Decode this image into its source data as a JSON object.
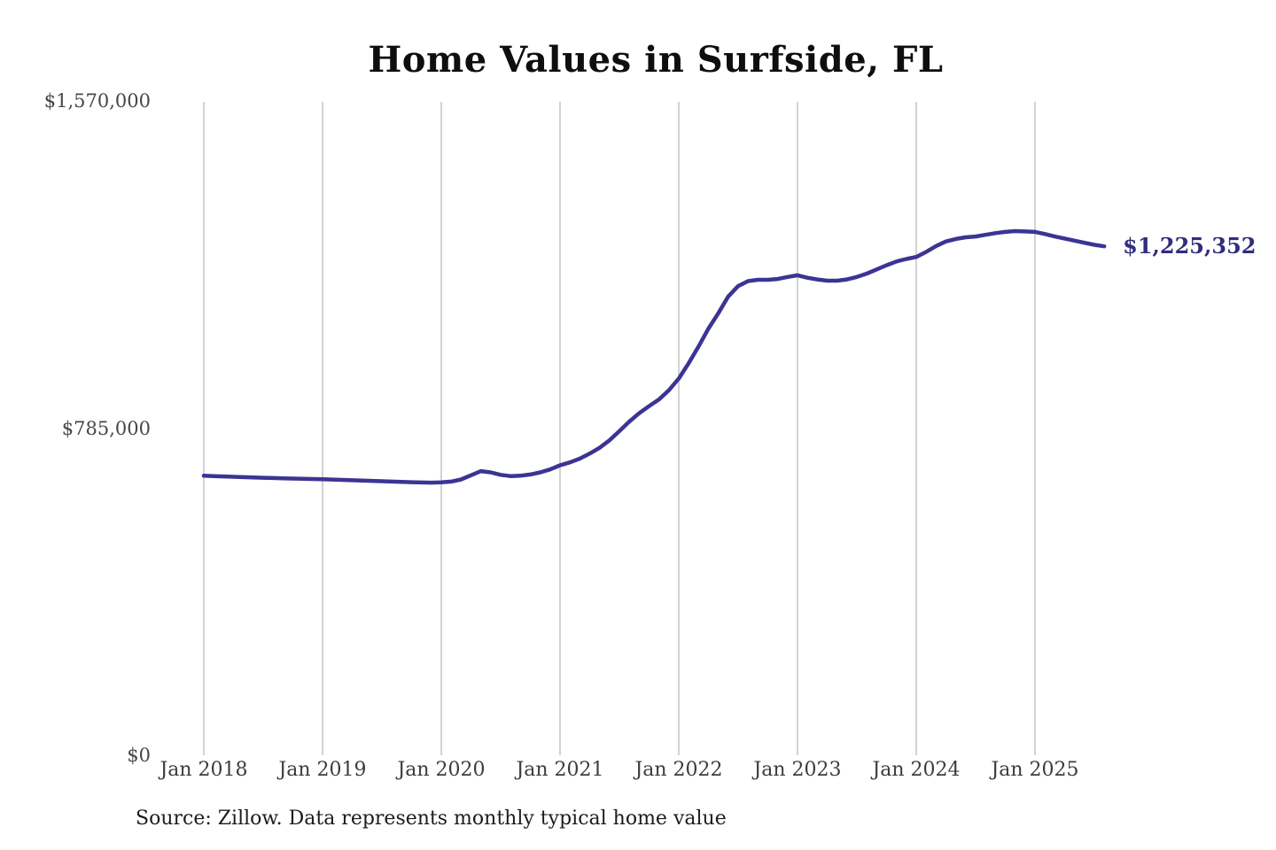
{
  "chart": {
    "title": "Home Values in Surfside, FL",
    "end_label": "$1,225,352",
    "source": "Source: Zillow. Data represents monthly typical home value",
    "colors": {
      "line": "#3c3494",
      "end_label": "#322d7d",
      "grid": "#c6c6c6",
      "title": "#0e0e0e",
      "tick_text": "#424242",
      "source_text": "#1c1c1c",
      "background": "#ffffff"
    }
  },
  "chart_data": {
    "type": "line",
    "title": "Home Values in Surfside, FL",
    "ylim": [
      0,
      1570000
    ],
    "grid": "vertical-only",
    "legend_position": "none",
    "annotation": "$1,225,352",
    "y_ticks": [
      {
        "label": "$1,570,000",
        "value": 1570000
      },
      {
        "label": "$785,000",
        "value": 785000
      },
      {
        "label": "$0",
        "value": 0
      }
    ],
    "x_ticks": [
      {
        "label": "Jan 2018",
        "index": 0
      },
      {
        "label": "Jan 2019",
        "index": 12
      },
      {
        "label": "Jan 2020",
        "index": 24
      },
      {
        "label": "Jan 2021",
        "index": 36
      },
      {
        "label": "Jan 2022",
        "index": 48
      },
      {
        "label": "Jan 2023",
        "index": 60
      },
      {
        "label": "Jan 2024",
        "index": 72
      },
      {
        "label": "Jan 2025",
        "index": 84
      }
    ],
    "x": [
      "2018-01",
      "2018-02",
      "2018-03",
      "2018-04",
      "2018-05",
      "2018-06",
      "2018-07",
      "2018-08",
      "2018-09",
      "2018-10",
      "2018-11",
      "2018-12",
      "2019-01",
      "2019-02",
      "2019-03",
      "2019-04",
      "2019-05",
      "2019-06",
      "2019-07",
      "2019-08",
      "2019-09",
      "2019-10",
      "2019-11",
      "2019-12",
      "2020-01",
      "2020-02",
      "2020-03",
      "2020-04",
      "2020-05",
      "2020-06",
      "2020-07",
      "2020-08",
      "2020-09",
      "2020-10",
      "2020-11",
      "2020-12",
      "2021-01",
      "2021-02",
      "2021-03",
      "2021-04",
      "2021-05",
      "2021-06",
      "2021-07",
      "2021-08",
      "2021-09",
      "2021-10",
      "2021-11",
      "2021-12",
      "2022-01",
      "2022-02",
      "2022-03",
      "2022-04",
      "2022-05",
      "2022-06",
      "2022-07",
      "2022-08",
      "2022-09",
      "2022-10",
      "2022-11",
      "2022-12",
      "2023-01",
      "2023-02",
      "2023-03",
      "2023-04",
      "2023-05",
      "2023-06",
      "2023-07",
      "2023-08",
      "2023-09",
      "2023-10",
      "2023-11",
      "2023-12",
      "2024-01",
      "2024-02",
      "2024-03",
      "2024-04",
      "2024-05",
      "2024-06",
      "2024-07",
      "2024-08",
      "2024-09",
      "2024-10",
      "2024-11",
      "2024-12",
      "2025-01",
      "2025-02",
      "2025-03",
      "2025-04",
      "2025-05",
      "2025-06",
      "2025-07",
      "2025-08"
    ],
    "values": [
      675000,
      674000,
      673200,
      672400,
      671600,
      670800,
      670000,
      669400,
      668800,
      668200,
      667600,
      667000,
      666400,
      665800,
      665000,
      664200,
      663400,
      662600,
      661800,
      661000,
      660200,
      659400,
      658800,
      658400,
      659000,
      661000,
      666000,
      676000,
      686000,
      683000,
      677000,
      674000,
      675000,
      678000,
      683000,
      690000,
      700000,
      707000,
      716000,
      728000,
      742000,
      760000,
      782000,
      805000,
      825000,
      842000,
      858000,
      880000,
      908000,
      945000,
      985000,
      1028000,
      1065000,
      1105000,
      1130000,
      1142000,
      1145000,
      1145000,
      1147000,
      1152000,
      1156000,
      1150000,
      1146000,
      1143000,
      1143000,
      1146000,
      1152000,
      1160000,
      1170000,
      1180000,
      1189000,
      1195000,
      1200000,
      1212000,
      1226000,
      1237000,
      1243000,
      1247000,
      1249000,
      1253000,
      1257000,
      1260000,
      1262000,
      1261000,
      1260000,
      1255000,
      1249000,
      1244000,
      1239000,
      1234000,
      1229000,
      1225352
    ]
  }
}
